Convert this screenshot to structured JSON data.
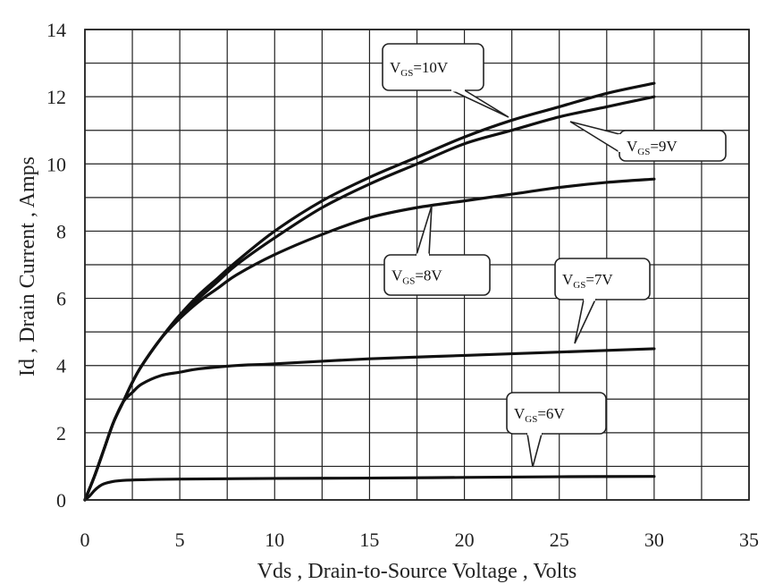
{
  "chart_data": {
    "type": "line",
    "title": "",
    "xlabel": "Vds , Drain-to-Source Voltage , Volts",
    "ylabel": "Id , Drain Current , Amps",
    "xlim": [
      0,
      35
    ],
    "ylim": [
      0,
      14
    ],
    "x_ticks": [
      0,
      5,
      10,
      15,
      20,
      25,
      30,
      35
    ],
    "y_ticks": [
      0,
      2,
      4,
      6,
      8,
      10,
      12,
      14
    ],
    "x_grid_step": 2.5,
    "y_grid_step": 1,
    "grid": true,
    "legend": "none",
    "series": [
      {
        "name": "VGS=10V",
        "x": [
          0,
          0.5,
          1,
          1.5,
          2,
          2.5,
          3,
          4,
          5,
          6,
          7,
          8,
          10,
          12.5,
          15,
          17.5,
          20,
          22.5,
          25,
          27.5,
          30
        ],
        "y": [
          0,
          0.7,
          1.5,
          2.3,
          2.9,
          3.5,
          4.0,
          4.8,
          5.5,
          6.1,
          6.6,
          7.1,
          8.0,
          8.9,
          9.6,
          10.2,
          10.8,
          11.3,
          11.7,
          12.1,
          12.4
        ]
      },
      {
        "name": "VGS=9V",
        "x": [
          0,
          0.5,
          1,
          1.5,
          2,
          2.5,
          3,
          4,
          5,
          6,
          7,
          8,
          10,
          12.5,
          15,
          17.5,
          20,
          22.5,
          25,
          27.5,
          30
        ],
        "y": [
          0,
          0.7,
          1.5,
          2.3,
          2.9,
          3.5,
          4.0,
          4.8,
          5.5,
          6.0,
          6.5,
          7.0,
          7.8,
          8.7,
          9.4,
          10.0,
          10.6,
          11.0,
          11.4,
          11.7,
          12.0
        ]
      },
      {
        "name": "VGS=8V",
        "x": [
          0,
          0.5,
          1,
          1.5,
          2,
          2.5,
          3,
          4,
          5,
          6,
          7,
          8,
          10,
          12.5,
          15,
          17.5,
          20,
          22.5,
          25,
          27.5,
          30
        ],
        "y": [
          0,
          0.7,
          1.5,
          2.3,
          2.9,
          3.5,
          4.0,
          4.8,
          5.4,
          5.9,
          6.3,
          6.7,
          7.3,
          7.9,
          8.4,
          8.7,
          8.9,
          9.1,
          9.3,
          9.45,
          9.55
        ]
      },
      {
        "name": "VGS=7V",
        "x": [
          0,
          0.5,
          1,
          1.5,
          2,
          2.5,
          3,
          4,
          5,
          6,
          8,
          10,
          15,
          20,
          25,
          30
        ],
        "y": [
          0,
          0.7,
          1.5,
          2.3,
          2.9,
          3.2,
          3.45,
          3.7,
          3.8,
          3.9,
          4.0,
          4.05,
          4.2,
          4.3,
          4.4,
          4.5
        ]
      },
      {
        "name": "VGS=6V",
        "x": [
          0,
          0.25,
          0.5,
          0.75,
          1,
          1.5,
          2,
          3,
          5,
          10,
          15,
          20,
          25,
          30
        ],
        "y": [
          0,
          0.12,
          0.28,
          0.4,
          0.48,
          0.55,
          0.58,
          0.6,
          0.62,
          0.64,
          0.65,
          0.67,
          0.69,
          0.7
        ]
      }
    ],
    "annotations": [
      {
        "main": "V",
        "sub": "GS",
        "rest": "=10V",
        "series": "VGS=10V"
      },
      {
        "main": "V",
        "sub": "GS",
        "rest": "=9V",
        "series": "VGS=9V"
      },
      {
        "main": "V",
        "sub": "GS",
        "rest": "=8V",
        "series": "VGS=8V"
      },
      {
        "main": "V",
        "sub": "GS",
        "rest": "=7V",
        "series": "VGS=7V"
      },
      {
        "main": "V",
        "sub": "GS",
        "rest": "=6V",
        "series": "VGS=6V"
      }
    ]
  }
}
